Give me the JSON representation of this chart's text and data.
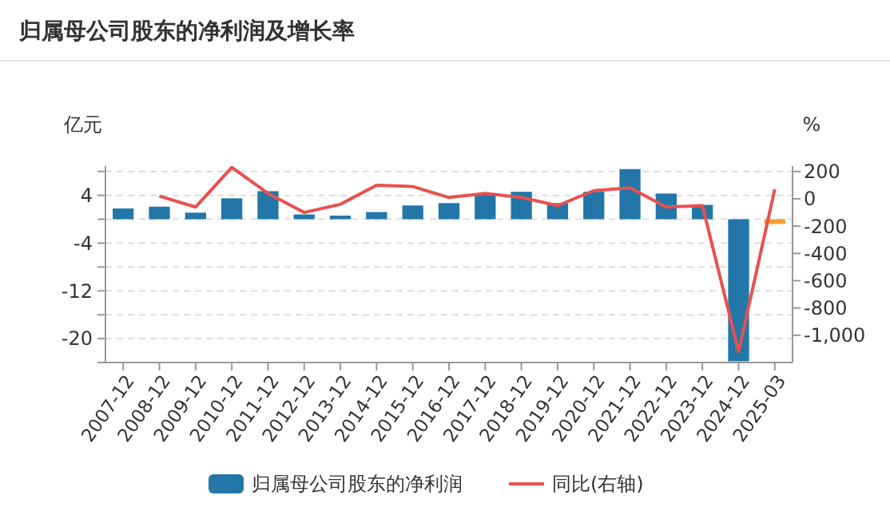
{
  "chart_data": {
    "type": "bar",
    "title": "归属母公司股东的净利润及增长率",
    "ylabel": "亿元",
    "y2label": "%",
    "categories": [
      "2007-12",
      "2008-12",
      "2009-12",
      "2010-12",
      "2011-12",
      "2012-12",
      "2013-12",
      "2014-12",
      "2015-12",
      "2016-12",
      "2017-12",
      "2018-12",
      "2019-12",
      "2020-12",
      "2021-12",
      "2022-12",
      "2023-12",
      "2024-12",
      "2025-03"
    ],
    "series": [
      {
        "name": "归属母公司股东的净利润",
        "color": "#2277a8",
        "colors": [
          "#2277a8",
          "#2277a8",
          "#2277a8",
          "#2277a8",
          "#2277a8",
          "#2277a8",
          "#2277a8",
          "#2277a8",
          "#2277a8",
          "#2277a8",
          "#2277a8",
          "#2277a8",
          "#2277a8",
          "#2277a8",
          "#2277a8",
          "#2277a8",
          "#2277a8",
          "#2277a8",
          "#f5a030"
        ],
        "values": [
          1.8,
          2.1,
          1.1,
          3.5,
          4.7,
          0.8,
          0.6,
          1.2,
          2.3,
          2.7,
          4.3,
          4.6,
          2.7,
          4.6,
          8.4,
          4.3,
          2.4,
          -23.8,
          -0.8
        ]
      },
      {
        "name": "同比(右轴)",
        "type": "line",
        "axis": "y2",
        "color": "#e8514f",
        "values": [
          null,
          20,
          -60,
          230,
          40,
          -100,
          -40,
          100,
          90,
          10,
          40,
          10,
          -50,
          60,
          80,
          -60,
          -50,
          -1120,
          70
        ]
      }
    ],
    "ylim": [
      -24,
      8.9
    ],
    "yticks": [
      {
        "value": 8,
        "label": null
      },
      4,
      {
        "value": 0,
        "label": null
      },
      -4,
      {
        "value": -8,
        "label": null
      },
      -12,
      {
        "value": -16,
        "label": null
      },
      -20,
      {
        "value": -24,
        "label": null
      }
    ],
    "y2lim": [
      -1200,
      240
    ],
    "y2ticks": [
      200,
      0,
      -200,
      -400,
      -600,
      -800,
      {
        "value": -1000,
        "label": "-1,000"
      }
    ],
    "grid": "y",
    "legend": "bottom",
    "marker": "none"
  }
}
